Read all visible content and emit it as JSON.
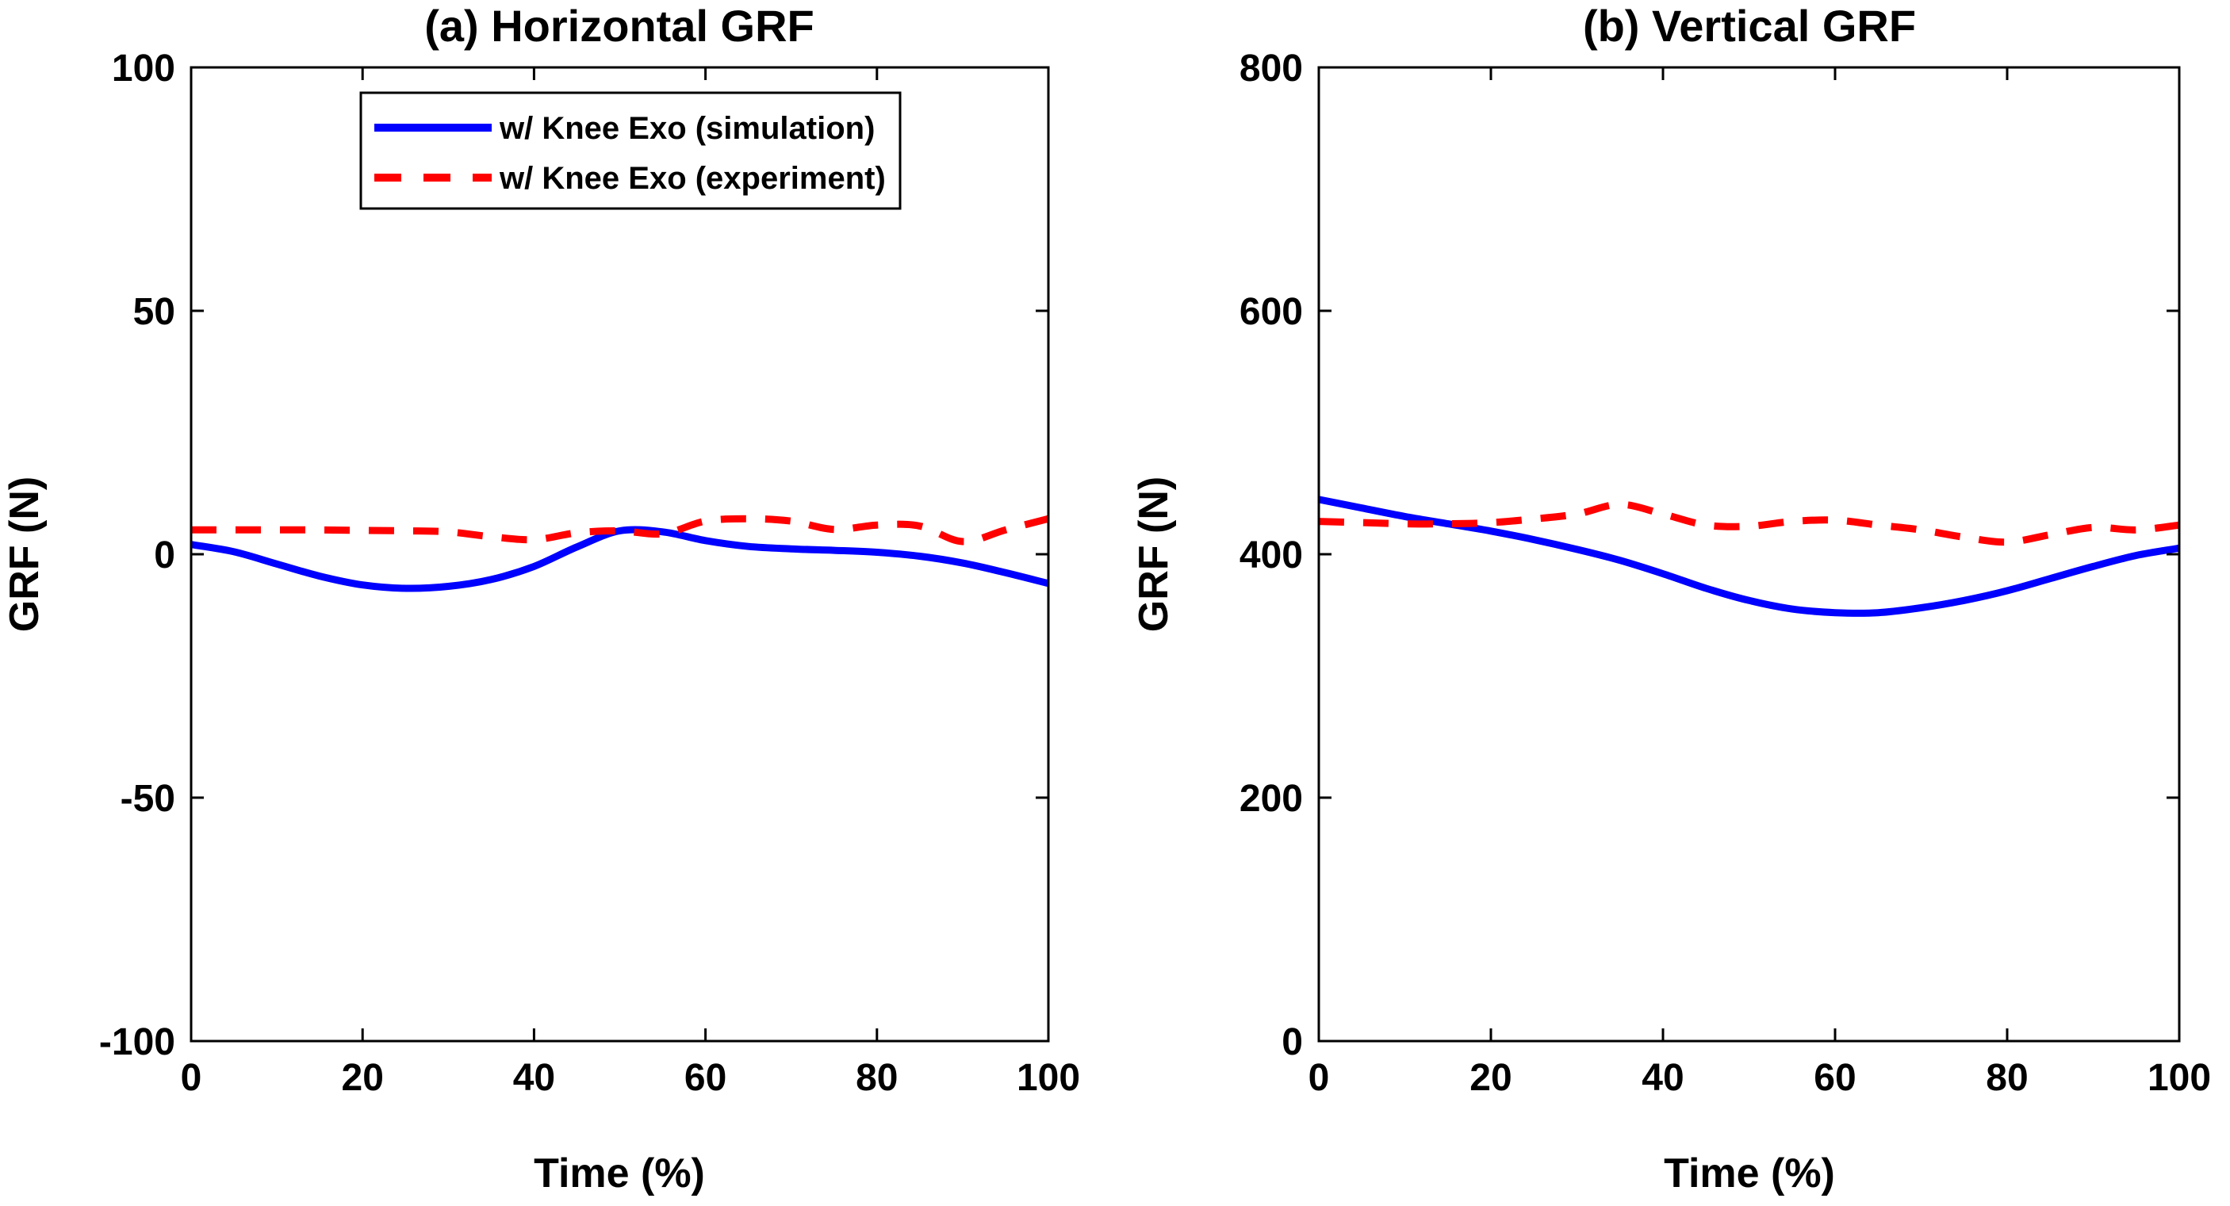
{
  "figure": {
    "background": "#ffffff",
    "axis_color": "#000000",
    "accent_blue": "#0000FF",
    "accent_red": "#FF0000"
  },
  "legend": {
    "position": "top-left-inside-panel-a",
    "items": [
      {
        "label": "w/ Knee Exo (simulation)",
        "color": "#0000FF",
        "style": "solid"
      },
      {
        "label": "w/ Knee Exo (experiment)",
        "color": "#FF0000",
        "style": "dashed"
      }
    ]
  },
  "chart_data": [
    {
      "type": "line",
      "title": "(a) Horizontal GRF",
      "xlabel": "Time (%)",
      "ylabel": "GRF (N)",
      "xlim": [
        0,
        100
      ],
      "ylim": [
        -100,
        100
      ],
      "xticks": [
        0,
        20,
        40,
        60,
        80,
        100
      ],
      "yticks": [
        -100,
        -50,
        0,
        50,
        100
      ],
      "grid": false,
      "x": [
        0,
        5,
        10,
        15,
        20,
        25,
        30,
        35,
        40,
        45,
        50,
        55,
        60,
        65,
        70,
        75,
        80,
        85,
        90,
        95,
        100
      ],
      "series": [
        {
          "name": "w/ Knee Exo (simulation)",
          "color": "#0000FF",
          "style": "solid",
          "values": [
            2,
            0.5,
            -2,
            -4.5,
            -6.3,
            -7,
            -6.6,
            -5.2,
            -2.5,
            1.5,
            4.8,
            4.6,
            2.8,
            1.6,
            1.1,
            0.8,
            0.4,
            -0.4,
            -1.8,
            -3.8,
            -6
          ]
        },
        {
          "name": "w/ Knee Exo (experiment)",
          "color": "#FF0000",
          "style": "dashed",
          "values": [
            5,
            5,
            5,
            5,
            4.9,
            4.8,
            4.6,
            3.6,
            3,
            4.4,
            4.8,
            4.2,
            6.8,
            7.3,
            6.8,
            5.1,
            6,
            5.8,
            2.6,
            5,
            7.3
          ]
        }
      ]
    },
    {
      "type": "line",
      "title": "(b) Vertical GRF",
      "xlabel": "Time (%)",
      "ylabel": "GRF (N)",
      "xlim": [
        0,
        100
      ],
      "ylim": [
        0,
        800
      ],
      "xticks": [
        0,
        20,
        40,
        60,
        80,
        100
      ],
      "yticks": [
        0,
        200,
        400,
        600,
        800
      ],
      "grid": false,
      "x": [
        0,
        5,
        10,
        15,
        20,
        25,
        30,
        35,
        40,
        45,
        50,
        55,
        60,
        65,
        70,
        75,
        80,
        85,
        90,
        95,
        100
      ],
      "series": [
        {
          "name": "w/ Knee Exo (simulation)",
          "color": "#0000FF",
          "style": "solid",
          "values": [
            445,
            438,
            431,
            425,
            419,
            412,
            404,
            395,
            384,
            372,
            362,
            355,
            352,
            352,
            356,
            362,
            370,
            380,
            390,
            399,
            405
          ]
        },
        {
          "name": "w/ Knee Exo (experiment)",
          "color": "#FF0000",
          "style": "dashed",
          "values": [
            427,
            426,
            425,
            425,
            426,
            429,
            433,
            441,
            433,
            424,
            423,
            427,
            428,
            424,
            420,
            414,
            410,
            416,
            422,
            420,
            424
          ]
        }
      ]
    }
  ]
}
